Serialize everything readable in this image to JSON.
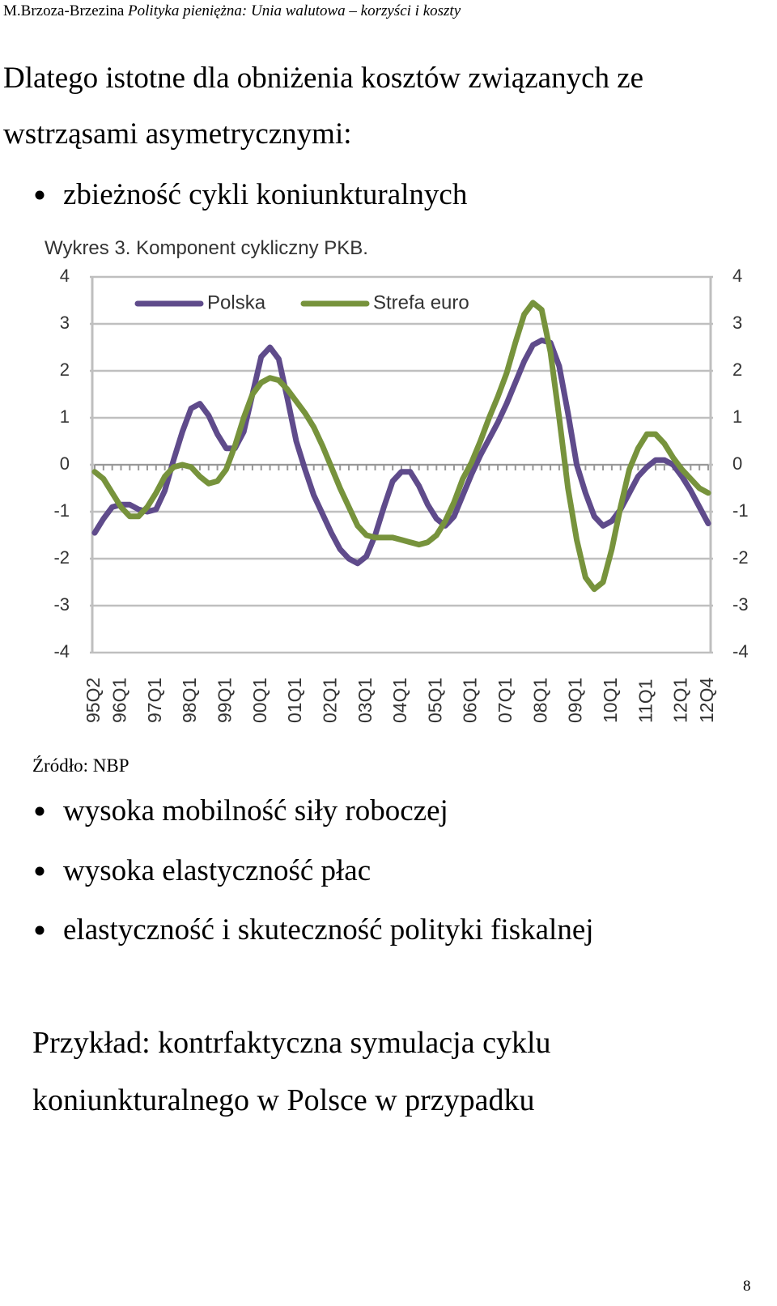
{
  "header": {
    "author": "M.Brzoza-Brzezina",
    "title": "Polityka pieniężna: Unia walutowa – korzyści i koszty"
  },
  "intro_lines": [
    "Dlatego istotne dla obniżenia kosztów związanych ze",
    "wstrząsami asymetrycznymi:"
  ],
  "bullets_top": [
    "zbieżność cykli koniunkturalnych"
  ],
  "chart_data": {
    "type": "line",
    "title": "Wykres 3. Komponent cykliczny PKB.",
    "categories": [
      "95Q2",
      null,
      null,
      "96Q1",
      null,
      null,
      null,
      "97Q1",
      null,
      null,
      null,
      "98Q1",
      null,
      null,
      null,
      "99Q1",
      null,
      null,
      null,
      "00Q1",
      null,
      null,
      null,
      "01Q1",
      null,
      null,
      null,
      "02Q1",
      null,
      null,
      null,
      "03Q1",
      null,
      null,
      null,
      "04Q1",
      null,
      null,
      null,
      "05Q1",
      null,
      null,
      null,
      "06Q1",
      null,
      null,
      null,
      "07Q1",
      null,
      null,
      null,
      "08Q1",
      null,
      null,
      null,
      "09Q1",
      null,
      null,
      null,
      "10Q1",
      null,
      null,
      null,
      "11Q1",
      null,
      null,
      null,
      "12Q1",
      null,
      null,
      "12Q4"
    ],
    "series": [
      {
        "name": "Polska",
        "color": "#5f4b8b",
        "values": [
          -1.45,
          -1.15,
          -0.9,
          -0.85,
          -0.85,
          -0.95,
          -1.0,
          -0.95,
          -0.55,
          0.1,
          0.7,
          1.2,
          1.3,
          1.05,
          0.65,
          0.35,
          0.35,
          0.7,
          1.5,
          2.3,
          2.5,
          2.25,
          1.4,
          0.5,
          -0.1,
          -0.65,
          -1.05,
          -1.45,
          -1.8,
          -2.0,
          -2.1,
          -1.95,
          -1.5,
          -0.9,
          -0.35,
          -0.15,
          -0.15,
          -0.45,
          -0.85,
          -1.15,
          -1.3,
          -1.1,
          -0.65,
          -0.2,
          0.2,
          0.55,
          0.9,
          1.3,
          1.75,
          2.2,
          2.55,
          2.65,
          2.6,
          2.1,
          1.1,
          0.0,
          -0.6,
          -1.1,
          -1.3,
          -1.2,
          -0.95,
          -0.6,
          -0.25,
          -0.05,
          0.1,
          0.1,
          0.0,
          -0.25,
          -0.55,
          -0.9,
          -1.25
        ]
      },
      {
        "name": "Strefa euro",
        "color": "#77933c",
        "values": [
          -0.15,
          -0.3,
          -0.6,
          -0.9,
          -1.1,
          -1.1,
          -0.9,
          -0.6,
          -0.25,
          -0.05,
          0.0,
          -0.05,
          -0.25,
          -0.4,
          -0.35,
          -0.1,
          0.4,
          1.0,
          1.5,
          1.75,
          1.85,
          1.8,
          1.6,
          1.35,
          1.1,
          0.8,
          0.4,
          -0.05,
          -0.5,
          -0.9,
          -1.3,
          -1.5,
          -1.55,
          -1.55,
          -1.55,
          -1.6,
          -1.65,
          -1.7,
          -1.65,
          -1.5,
          -1.2,
          -0.8,
          -0.3,
          0.05,
          0.5,
          1.0,
          1.45,
          1.95,
          2.6,
          3.2,
          3.45,
          3.3,
          2.4,
          1.0,
          -0.5,
          -1.6,
          -2.4,
          -2.65,
          -2.5,
          -1.8,
          -0.9,
          -0.1,
          0.35,
          0.65,
          0.65,
          0.45,
          0.15,
          -0.1,
          -0.3,
          -0.5,
          -0.6
        ]
      }
    ],
    "ylim": [
      -4,
      4
    ],
    "yticks": [
      -4,
      -3,
      -2,
      -1,
      0,
      1,
      2,
      3,
      4
    ],
    "y2lim": [
      -4,
      4
    ],
    "y2ticks": [
      -4,
      -3,
      -2,
      -1,
      0,
      1,
      2,
      3,
      4
    ],
    "grid": true,
    "legend": "top-left"
  },
  "source": "Źródło: NBP",
  "bullets_bottom": [
    "wysoka mobilność siły roboczej",
    "wysoka elastyczność płac",
    "elastyczność i skuteczność polityki fiskalnej"
  ],
  "example_lines": [
    "Przykład: kontrfaktyczna symulacja cyklu",
    "koniunkturalnego w Polsce w przypadku"
  ],
  "page_number": "8"
}
